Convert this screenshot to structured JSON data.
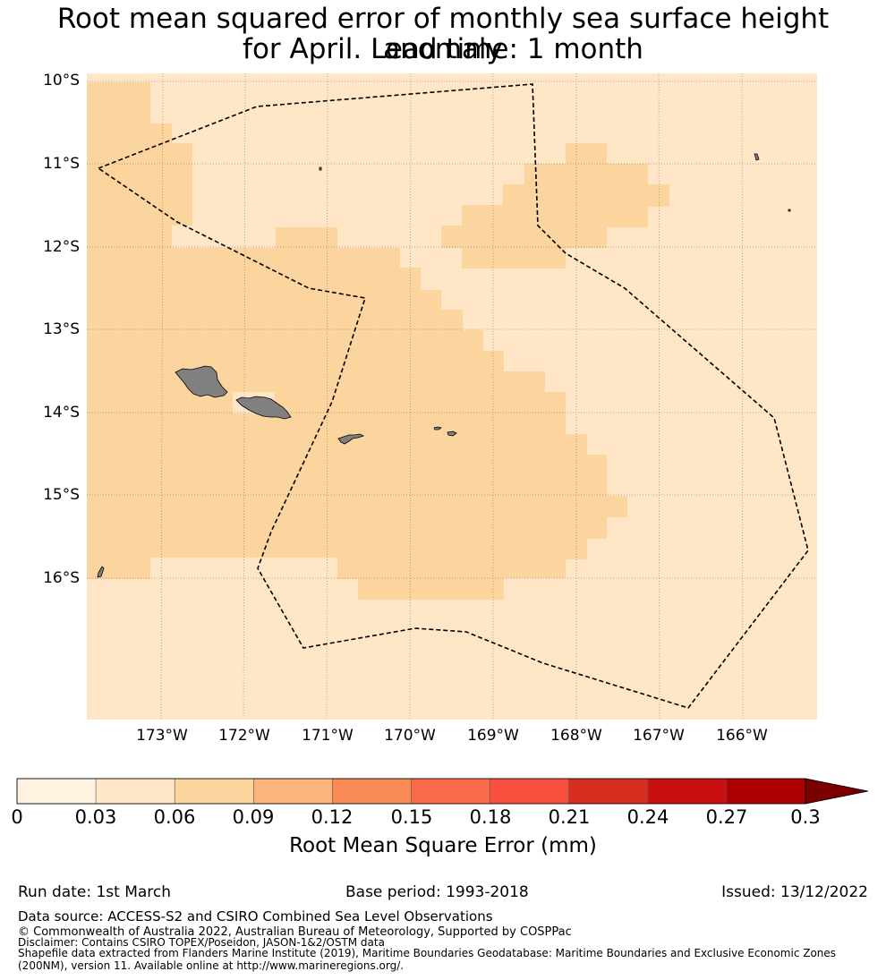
{
  "title": {
    "line1": "Root mean squared error of monthly sea surface height anomaly",
    "line2": "for April. Lead time: 1 month"
  },
  "map": {
    "latitude_labels": [
      "10°S",
      "11°S",
      "12°S",
      "13°S",
      "14°S",
      "15°S",
      "16°S"
    ],
    "longitude_labels": [
      "173°W",
      "172°W",
      "171°W",
      "170°W",
      "169°W",
      "168°W",
      "167°W",
      "166°W"
    ],
    "extent": {
      "lon_west": -173.9,
      "lon_east": -165.1,
      "lat_north": -9.95,
      "lat_south": -17.75
    },
    "colors": {
      "background_class": "#ffe6c7",
      "highlight_class": "#fcd49d",
      "land": "#808080",
      "boundary": "#000000"
    }
  },
  "colorbar": {
    "ticks": [
      "0",
      "0.03",
      "0.06",
      "0.09",
      "0.12",
      "0.15",
      "0.18",
      "0.21",
      "0.24",
      "0.27",
      "0.3"
    ],
    "colors": [
      "#fff2e1",
      "#ffe6c7",
      "#fcd49d",
      "#fcb47c",
      "#fb8c57",
      "#f96a4a",
      "#f7503f",
      "#d62f21",
      "#c70f12",
      "#ac0000"
    ],
    "extend_color": "#7a0000",
    "label": "Root Mean Square Error (mm)"
  },
  "footer": {
    "run_date": "Run date: 1st March",
    "base_period": "Base period: 1993-2018",
    "issued": "Issued: 13/12/2022",
    "data_source": "Data source: ACCESS-S2 and CSIRO Combined Sea Level Observations",
    "copyright": "© Commonwealth of Australia 2022, Australian Bureau of Meteorology, Supported by COSPPac",
    "disclaimer": "Disclaimer: Contains CSIRO TOPEX/Poseidon, JASON-1&2/OSTM data",
    "shapefile1": "Shapefile data extracted from Flanders Marine Institute (2019), Maritime Boundaries Geodatabase: Maritime Boundaries and Exclusive Economic Zones",
    "shapefile2": "(200NM), version 11. Available online at http://www.marineregions.org/."
  }
}
